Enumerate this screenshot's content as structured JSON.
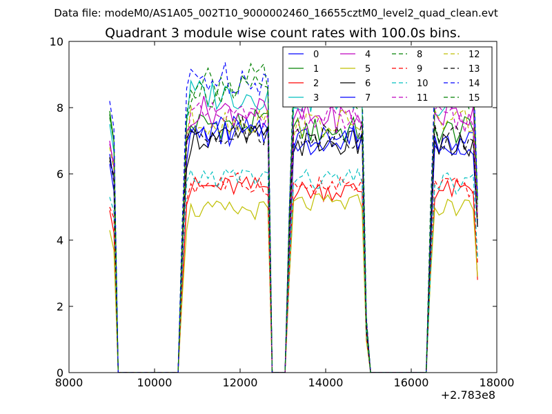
{
  "chart_data": {
    "type": "line",
    "suptitle": "Data file: modeM0/AS1A05_002T10_9000002460_16655cztM0_level2_quad_clean.evt",
    "title": "Quadrant 3 module wise count rates with 100.0s bins.",
    "xlabel": "",
    "ylabel": "",
    "xlim": [
      8000,
      18000
    ],
    "ylim": [
      0,
      10
    ],
    "x_ticks": [
      8000,
      10000,
      12000,
      14000,
      16000,
      18000
    ],
    "x_tick_labels": [
      "8000",
      "10000",
      "12000",
      "14000",
      "16000",
      "18000"
    ],
    "y_ticks": [
      0,
      2,
      4,
      6,
      8,
      10
    ],
    "y_tick_labels": [
      "0",
      "2",
      "4",
      "6",
      "8",
      "10"
    ],
    "x_offset_label": "+2.783e8",
    "legend_position": "top-right",
    "legend_columns": 4,
    "grid": false,
    "x_sampling": {
      "bin_width": 100,
      "segments": [
        {
          "start": 8950,
          "end": 9150
        },
        {
          "start": 9150,
          "end": 10550
        },
        {
          "start": 10550,
          "end": 12750
        },
        {
          "start": 12750,
          "end": 13050
        },
        {
          "start": 13050,
          "end": 15050
        },
        {
          "start": 15050,
          "end": 16350
        },
        {
          "start": 16350,
          "end": 17550
        }
      ]
    },
    "series": [
      {
        "name": "0",
        "color": "#0000ff",
        "dash": "solid",
        "level_seg2": 7.3,
        "level_seg4": 7.0,
        "level_seg6": 6.9,
        "start_value": 6.3,
        "end_value": 4.4
      },
      {
        "name": "1",
        "color": "#008000",
        "dash": "solid",
        "level_seg2": 7.5,
        "level_seg4": 7.3,
        "level_seg6": 7.3,
        "start_value": 7.9,
        "end_value": 4.6
      },
      {
        "name": "2",
        "color": "#ff0000",
        "dash": "solid",
        "level_seg2": 5.6,
        "level_seg4": 5.5,
        "level_seg6": 5.5,
        "start_value": 4.9,
        "end_value": 2.8
      },
      {
        "name": "3",
        "color": "#00bfbf",
        "dash": "solid",
        "level_seg2": 8.4,
        "level_seg4": 8.3,
        "level_seg6": 8.2,
        "start_value": 7.5,
        "end_value": 5.0
      },
      {
        "name": "4",
        "color": "#bf00bf",
        "dash": "solid",
        "level_seg2": 7.9,
        "level_seg4": 7.7,
        "level_seg6": 7.8,
        "start_value": 7.0,
        "end_value": 4.7
      },
      {
        "name": "5",
        "color": "#bfbf00",
        "dash": "solid",
        "level_seg2": 4.9,
        "level_seg4": 5.1,
        "level_seg6": 5.0,
        "start_value": 4.3,
        "end_value": 2.9
      },
      {
        "name": "6",
        "color": "#000000",
        "dash": "solid",
        "level_seg2": 7.1,
        "level_seg4": 6.9,
        "level_seg6": 6.8,
        "start_value": 6.4,
        "end_value": 4.4
      },
      {
        "name": "7",
        "color": "#0000ff",
        "dash": "solid",
        "level_seg2": 7.2,
        "level_seg4": 7.1,
        "level_seg6": 7.0,
        "start_value": 6.6,
        "end_value": 4.6
      },
      {
        "name": "8",
        "color": "#008000",
        "dash": "dashed",
        "level_seg2": 8.8,
        "level_seg4": 8.7,
        "level_seg6": 8.6,
        "start_value": 7.8,
        "end_value": 5.2
      },
      {
        "name": "9",
        "color": "#ff0000",
        "dash": "dashed",
        "level_seg2": 5.7,
        "level_seg4": 5.6,
        "level_seg6": 5.6,
        "start_value": 5.0,
        "end_value": 3.3
      },
      {
        "name": "10",
        "color": "#00bfbf",
        "dash": "dashed",
        "level_seg2": 5.9,
        "level_seg4": 5.8,
        "level_seg6": 5.7,
        "start_value": 5.3,
        "end_value": 3.5
      },
      {
        "name": "11",
        "color": "#bf00bf",
        "dash": "dashed",
        "level_seg2": 7.7,
        "level_seg4": 7.6,
        "level_seg6": 7.6,
        "start_value": 6.9,
        "end_value": 4.7
      },
      {
        "name": "12",
        "color": "#bfbf00",
        "dash": "dashed",
        "level_seg2": 7.6,
        "level_seg4": 7.5,
        "level_seg6": 7.6,
        "start_value": 6.8,
        "end_value": 4.6
      },
      {
        "name": "13",
        "color": "#000000",
        "dash": "dashed",
        "level_seg2": 7.3,
        "level_seg4": 7.2,
        "level_seg6": 7.1,
        "start_value": 6.5,
        "end_value": 4.4
      },
      {
        "name": "14",
        "color": "#0000ff",
        "dash": "dashed",
        "level_seg2": 8.9,
        "level_seg4": 8.8,
        "level_seg6": 8.9,
        "start_value": 8.2,
        "end_value": 5.3
      },
      {
        "name": "15",
        "color": "#008000",
        "dash": "dashed",
        "level_seg2": 8.5,
        "level_seg4": 8.4,
        "level_seg6": 8.4,
        "start_value": 7.7,
        "end_value": 5.1
      }
    ]
  }
}
